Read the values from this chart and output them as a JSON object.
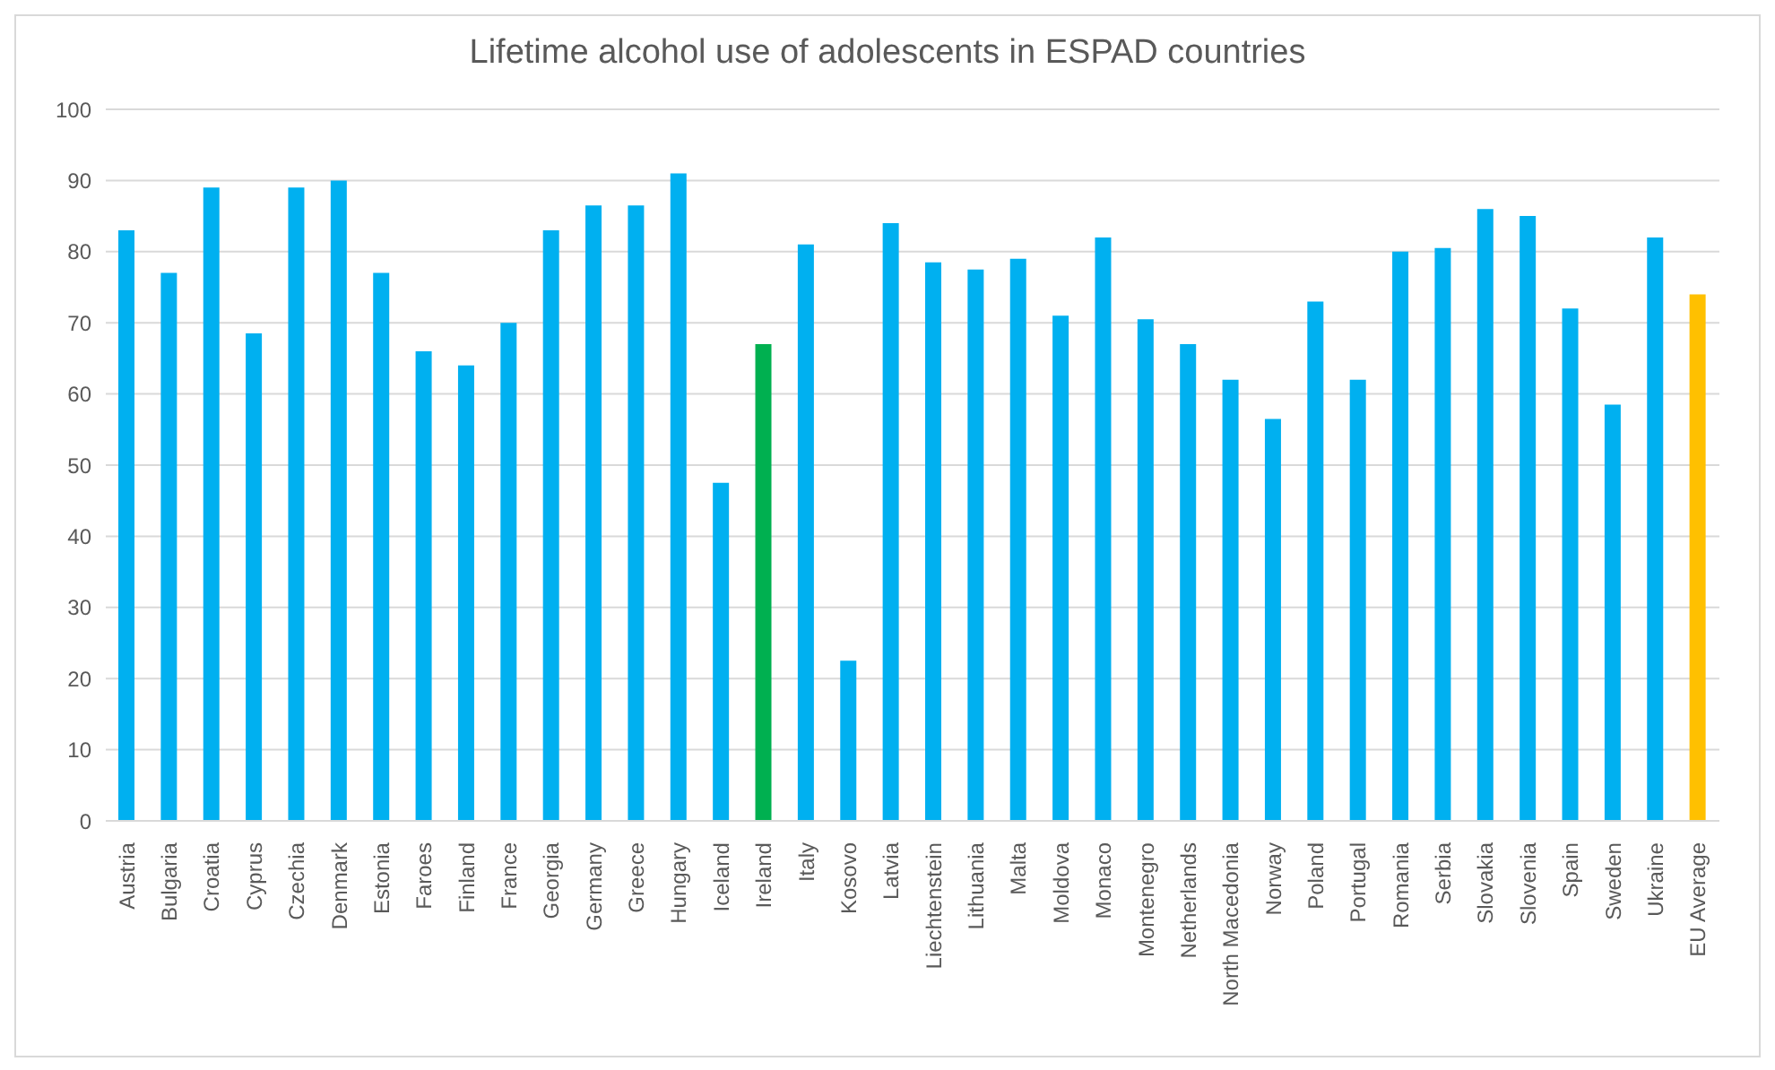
{
  "chart_data": {
    "type": "bar",
    "title": "Lifetime alcohol use of adolescents in ESPAD countries",
    "categories": [
      "Austria",
      "Bulgaria",
      "Croatia",
      "Cyprus",
      "Czechia",
      "Denmark",
      "Estonia",
      "Faroes",
      "Finland",
      "France",
      "Georgia",
      "Germany",
      "Greece",
      "Hungary",
      "Iceland",
      "Ireland",
      "Italy",
      "Kosovo",
      "Latvia",
      "Liechtenstein",
      "Lithuania",
      "Malta",
      "Moldova",
      "Monaco",
      "Montenegro",
      "Netherlands",
      "North Macedonia",
      "Norway",
      "Poland",
      "Portugal",
      "Romania",
      "Serbia",
      "Slovakia",
      "Slovenia",
      "Spain",
      "Sweden",
      "Ukraine",
      "EU Average"
    ],
    "values": [
      83,
      77,
      89,
      68.5,
      89,
      90,
      77,
      66,
      64,
      70,
      83,
      86.5,
      86.5,
      91,
      47.5,
      67,
      81,
      22.5,
      84,
      78.5,
      77.5,
      79,
      71,
      82,
      70.5,
      67,
      62,
      56.5,
      73,
      62,
      80,
      80.5,
      86,
      85,
      72,
      58.5,
      82,
      74
    ],
    "colors": [
      "#00b0f0",
      "#00b0f0",
      "#00b0f0",
      "#00b0f0",
      "#00b0f0",
      "#00b0f0",
      "#00b0f0",
      "#00b0f0",
      "#00b0f0",
      "#00b0f0",
      "#00b0f0",
      "#00b0f0",
      "#00b0f0",
      "#00b0f0",
      "#00b0f0",
      "#00b050",
      "#00b0f0",
      "#00b0f0",
      "#00b0f0",
      "#00b0f0",
      "#00b0f0",
      "#00b0f0",
      "#00b0f0",
      "#00b0f0",
      "#00b0f0",
      "#00b0f0",
      "#00b0f0",
      "#00b0f0",
      "#00b0f0",
      "#00b0f0",
      "#00b0f0",
      "#00b0f0",
      "#00b0f0",
      "#00b0f0",
      "#00b0f0",
      "#00b0f0",
      "#00b0f0",
      "#ffc000"
    ],
    "ylim": [
      0,
      100
    ],
    "yticks": [
      0,
      10,
      20,
      30,
      40,
      50,
      60,
      70,
      80,
      90,
      100
    ],
    "grid": "y"
  }
}
